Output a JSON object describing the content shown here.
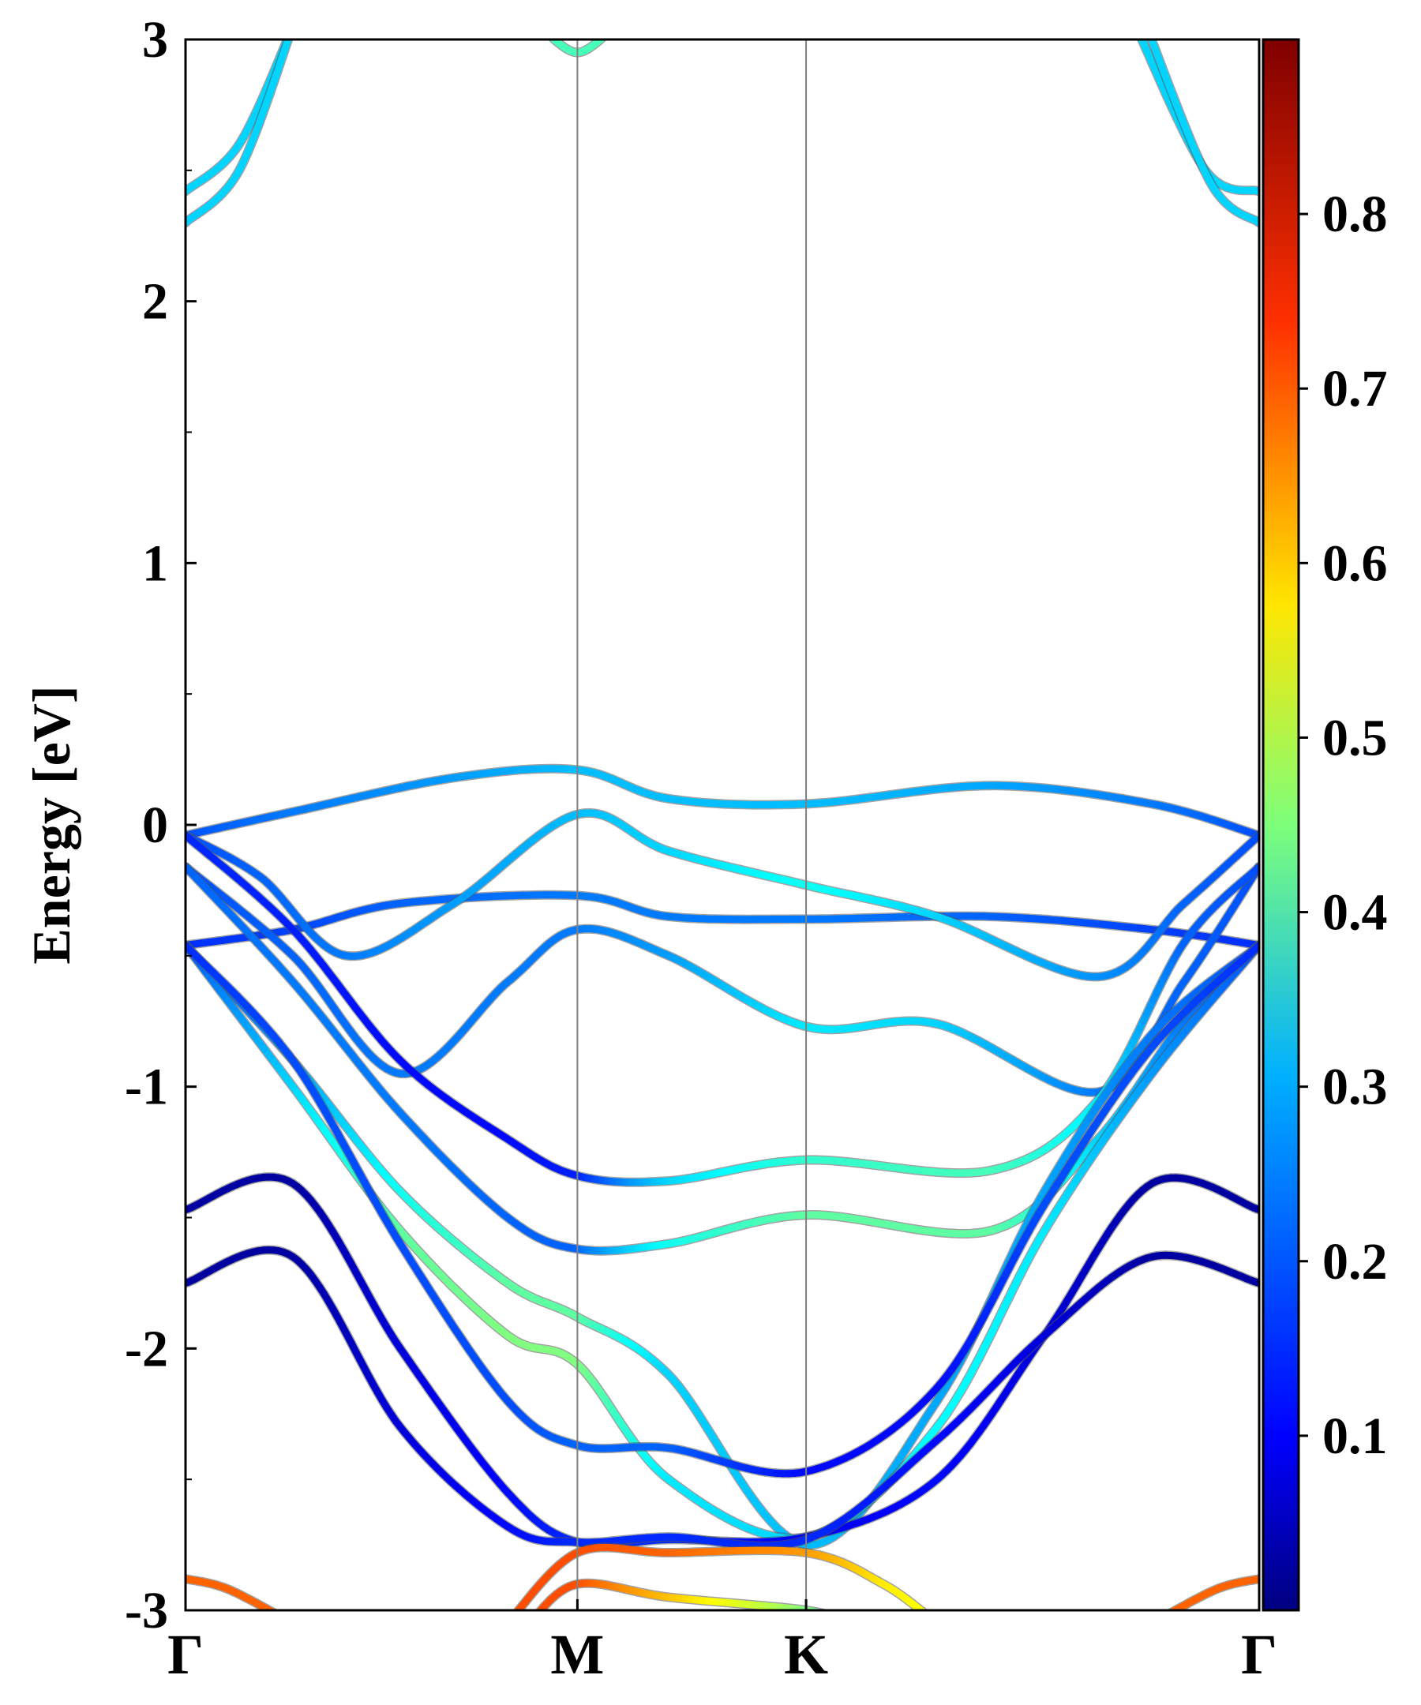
{
  "chart_data": {
    "type": "line",
    "ylabel": "Energy [eV]",
    "xlabel": "",
    "ylim": [
      -3,
      3
    ],
    "xlim": [
      0,
      1
    ],
    "yticks": [
      -3,
      -2,
      -1,
      0,
      1,
      2,
      3
    ],
    "yticklabels": [
      "-3",
      "-2",
      "-1",
      "0",
      "1",
      "2",
      "3"
    ],
    "kpoints": [
      {
        "label": "Γ",
        "x": 0.0
      },
      {
        "label": "M",
        "x": 0.365
      },
      {
        "label": "K",
        "x": 0.578
      },
      {
        "label": "Γ",
        "x": 1.0
      }
    ],
    "colorbar": {
      "min": 0.0,
      "max": 0.9,
      "ticks": [
        0.1,
        0.2,
        0.3,
        0.4,
        0.5,
        0.6,
        0.7,
        0.8
      ],
      "ticklabels": [
        "0.1",
        "0.2",
        "0.3",
        "0.4",
        "0.5",
        "0.6",
        "0.7",
        "0.8"
      ],
      "colormap": "jet"
    },
    "bands": [
      {
        "points": [
          [
            0,
            2.42,
            0.3
          ],
          [
            0.05,
            2.6,
            0.3
          ],
          [
            0.1,
            3.05,
            0.3
          ]
        ]
      },
      {
        "points": [
          [
            0,
            2.3,
            0.3
          ],
          [
            0.05,
            2.5,
            0.3
          ],
          [
            0.1,
            3.05,
            0.3
          ]
        ]
      },
      {
        "points": [
          [
            0.885,
            3.05,
            0.3
          ],
          [
            0.95,
            2.5,
            0.3
          ],
          [
            1.0,
            2.42,
            0.3
          ]
        ]
      },
      {
        "points": [
          [
            0.895,
            3.05,
            0.3
          ],
          [
            0.955,
            2.45,
            0.3
          ],
          [
            1.0,
            2.3,
            0.3
          ]
        ]
      },
      {
        "points": [
          [
            0.33,
            3.05,
            0.4
          ],
          [
            0.365,
            2.95,
            0.4
          ],
          [
            0.4,
            3.05,
            0.4
          ]
        ]
      },
      {
        "points": [
          [
            0,
            -0.04,
            0.18
          ],
          [
            0.1,
            0.05,
            0.22
          ],
          [
            0.25,
            0.18,
            0.25
          ],
          [
            0.365,
            0.21,
            0.28
          ],
          [
            0.45,
            0.1,
            0.28
          ],
          [
            0.578,
            0.08,
            0.28
          ],
          [
            0.75,
            0.15,
            0.26
          ],
          [
            0.9,
            0.08,
            0.22
          ],
          [
            1.0,
            -0.04,
            0.18
          ]
        ]
      },
      {
        "points": [
          [
            0,
            -0.46,
            0.15
          ],
          [
            0.1,
            -0.4,
            0.17
          ],
          [
            0.2,
            -0.3,
            0.2
          ],
          [
            0.365,
            -0.27,
            0.22
          ],
          [
            0.45,
            -0.35,
            0.22
          ],
          [
            0.578,
            -0.36,
            0.22
          ],
          [
            0.75,
            -0.35,
            0.2
          ],
          [
            0.9,
            -0.4,
            0.17
          ],
          [
            1.0,
            -0.46,
            0.15
          ]
        ]
      },
      {
        "points": [
          [
            0,
            -0.04,
            0.18
          ],
          [
            0.07,
            -0.2,
            0.2
          ],
          [
            0.15,
            -0.5,
            0.22
          ],
          [
            0.25,
            -0.3,
            0.25
          ],
          [
            0.365,
            0.04,
            0.28
          ],
          [
            0.45,
            -0.1,
            0.3
          ],
          [
            0.578,
            -0.23,
            0.35
          ],
          [
            0.7,
            -0.35,
            0.3
          ],
          [
            0.85,
            -0.58,
            0.24
          ],
          [
            0.93,
            -0.3,
            0.2
          ],
          [
            1.0,
            -0.04,
            0.18
          ]
        ]
      },
      {
        "points": [
          [
            0,
            -0.16,
            0.18
          ],
          [
            0.1,
            -0.5,
            0.2
          ],
          [
            0.2,
            -0.95,
            0.22
          ],
          [
            0.3,
            -0.6,
            0.22
          ],
          [
            0.365,
            -0.4,
            0.22
          ],
          [
            0.45,
            -0.5,
            0.25
          ],
          [
            0.578,
            -0.77,
            0.32
          ],
          [
            0.7,
            -0.76,
            0.3
          ],
          [
            0.85,
            -1.02,
            0.22
          ],
          [
            0.93,
            -0.6,
            0.2
          ],
          [
            1.0,
            -0.16,
            0.18
          ]
        ]
      },
      {
        "points": [
          [
            0,
            -0.04,
            0.15
          ],
          [
            0.1,
            -0.4,
            0.14
          ],
          [
            0.2,
            -0.9,
            0.12
          ],
          [
            0.3,
            -1.2,
            0.12
          ],
          [
            0.365,
            -1.34,
            0.14
          ],
          [
            0.45,
            -1.36,
            0.3
          ],
          [
            0.578,
            -1.28,
            0.38
          ],
          [
            0.75,
            -1.32,
            0.4
          ],
          [
            0.85,
            -1.05,
            0.32
          ],
          [
            0.93,
            -0.45,
            0.2
          ],
          [
            1.0,
            -0.16,
            0.18
          ]
        ]
      },
      {
        "points": [
          [
            0,
            -0.16,
            0.2
          ],
          [
            0.1,
            -0.6,
            0.22
          ],
          [
            0.2,
            -1.1,
            0.22
          ],
          [
            0.3,
            -1.5,
            0.2
          ],
          [
            0.365,
            -1.62,
            0.2
          ],
          [
            0.45,
            -1.6,
            0.35
          ],
          [
            0.578,
            -1.49,
            0.42
          ],
          [
            0.75,
            -1.55,
            0.42
          ],
          [
            0.85,
            -1.2,
            0.3
          ],
          [
            0.93,
            -0.75,
            0.22
          ],
          [
            1.0,
            -0.46,
            0.18
          ]
        ]
      },
      {
        "points": [
          [
            0,
            -0.46,
            0.18
          ],
          [
            0.1,
            -0.9,
            0.25
          ],
          [
            0.2,
            -1.4,
            0.35
          ],
          [
            0.3,
            -1.75,
            0.42
          ],
          [
            0.365,
            -1.88,
            0.42
          ],
          [
            0.45,
            -2.1,
            0.3
          ],
          [
            0.578,
            -2.75,
            0.28
          ],
          [
            0.7,
            -2.2,
            0.26
          ],
          [
            0.8,
            -1.4,
            0.26
          ],
          [
            0.9,
            -0.8,
            0.22
          ],
          [
            1.0,
            -0.46,
            0.18
          ]
        ]
      },
      {
        "points": [
          [
            0,
            -0.46,
            0.18
          ],
          [
            0.1,
            -1.0,
            0.3
          ],
          [
            0.2,
            -1.55,
            0.42
          ],
          [
            0.3,
            -1.95,
            0.45
          ],
          [
            0.365,
            -2.06,
            0.45
          ],
          [
            0.45,
            -2.5,
            0.32
          ],
          [
            0.578,
            -2.72,
            0.3
          ],
          [
            0.7,
            -2.3,
            0.34
          ],
          [
            0.8,
            -1.55,
            0.32
          ],
          [
            0.9,
            -0.95,
            0.25
          ],
          [
            1.0,
            -0.46,
            0.18
          ]
        ]
      },
      {
        "points": [
          [
            0,
            -0.46,
            0.15
          ],
          [
            0.1,
            -0.9,
            0.18
          ],
          [
            0.2,
            -1.6,
            0.18
          ],
          [
            0.3,
            -2.2,
            0.18
          ],
          [
            0.365,
            -2.37,
            0.2
          ],
          [
            0.45,
            -2.38,
            0.2
          ],
          [
            0.578,
            -2.47,
            0.12
          ],
          [
            0.7,
            -2.15,
            0.12
          ],
          [
            0.8,
            -1.45,
            0.18
          ],
          [
            0.9,
            -0.85,
            0.18
          ],
          [
            1.0,
            -0.46,
            0.15
          ]
        ]
      },
      {
        "points": [
          [
            0,
            -1.47,
            0.03
          ],
          [
            0.1,
            -1.37,
            0.03
          ],
          [
            0.2,
            -2.0,
            0.08
          ],
          [
            0.3,
            -2.55,
            0.12
          ],
          [
            0.365,
            -2.74,
            0.15
          ],
          [
            0.45,
            -2.73,
            0.15
          ],
          [
            0.578,
            -2.72,
            0.1
          ],
          [
            0.7,
            -2.5,
            0.12
          ],
          [
            0.8,
            -1.95,
            0.08
          ],
          [
            0.9,
            -1.37,
            0.03
          ],
          [
            1.0,
            -1.47,
            0.03
          ]
        ]
      },
      {
        "points": [
          [
            0,
            -1.75,
            0.03
          ],
          [
            0.1,
            -1.65,
            0.03
          ],
          [
            0.2,
            -2.3,
            0.08
          ],
          [
            0.3,
            -2.68,
            0.12
          ],
          [
            0.365,
            -2.74,
            0.15
          ],
          [
            0.45,
            -2.72,
            0.15
          ],
          [
            0.578,
            -2.73,
            0.15
          ],
          [
            0.7,
            -2.35,
            0.12
          ],
          [
            0.8,
            -1.95,
            0.08
          ],
          [
            0.9,
            -1.65,
            0.03
          ],
          [
            1.0,
            -1.75,
            0.03
          ]
        ]
      },
      {
        "points": [
          [
            0,
            -2.88,
            0.7
          ],
          [
            0.04,
            -2.92,
            0.7
          ],
          [
            0.1,
            -3.05,
            0.7
          ]
        ]
      },
      {
        "points": [
          [
            0.9,
            -3.05,
            0.7
          ],
          [
            0.96,
            -2.92,
            0.7
          ],
          [
            1.0,
            -2.88,
            0.7
          ]
        ]
      },
      {
        "points": [
          [
            0.3,
            -3.05,
            0.72
          ],
          [
            0.365,
            -2.78,
            0.72
          ],
          [
            0.45,
            -2.78,
            0.7
          ],
          [
            0.578,
            -2.78,
            0.65
          ],
          [
            0.65,
            -2.9,
            0.58
          ],
          [
            0.7,
            -3.05,
            0.55
          ]
        ]
      },
      {
        "points": [
          [
            0.32,
            -3.05,
            0.72
          ],
          [
            0.365,
            -2.9,
            0.72
          ],
          [
            0.45,
            -2.95,
            0.62
          ],
          [
            0.578,
            -3.0,
            0.45
          ],
          [
            0.62,
            -3.05,
            0.4
          ]
        ]
      }
    ]
  }
}
